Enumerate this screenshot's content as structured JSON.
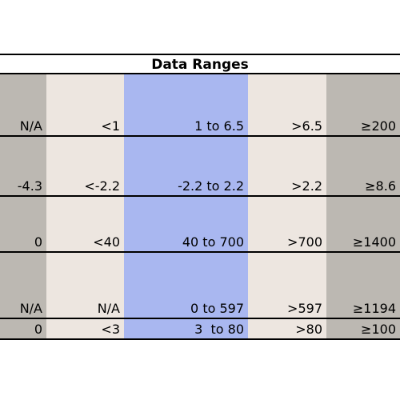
{
  "table": {
    "title": "Data Ranges",
    "rows": [
      [
        "N/A",
        "<1",
        "1 to 6.5",
        ">6.5",
        "≥200"
      ],
      [
        "-4.3",
        "<-2.2",
        "-2.2 to 2.2",
        ">2.2",
        "≥8.6"
      ],
      [
        "0",
        "<40",
        "40 to 700",
        ">700",
        "≥1400"
      ],
      [
        "N/A",
        "N/A",
        "0 to 597",
        ">597",
        "≥1194"
      ],
      [
        "0",
        "<3",
        "3  to 80",
        ">80",
        "≥100"
      ]
    ]
  }
}
